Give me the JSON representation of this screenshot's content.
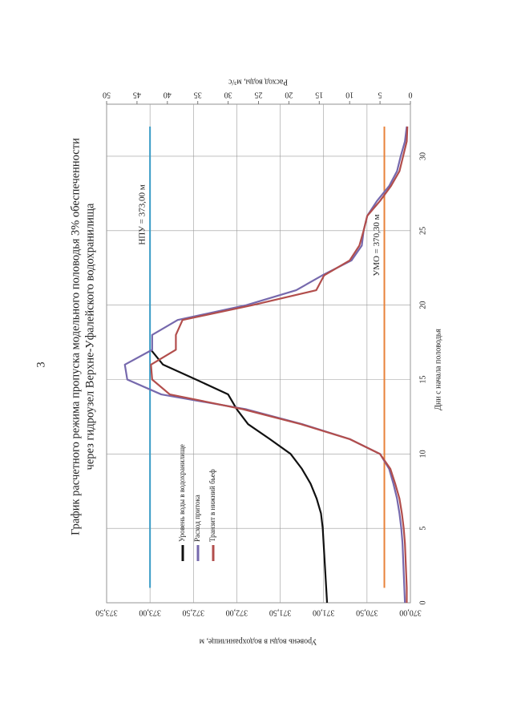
{
  "page_number": "3",
  "chart_data": {
    "type": "line",
    "title": [
      "График расчетного режима пропуска модельного половодья 3% обеспеченности",
      "через гидроузел Верхне-Уфалейского водохранилища"
    ],
    "x_label": "Дни с начала половодья",
    "y_label": "Уровень воды в водохранилище, м",
    "y2_label": "Расход воды, м³/с",
    "xlim": [
      0,
      33.5
    ],
    "xticks": [
      0,
      5,
      10,
      15,
      20,
      25,
      30
    ],
    "ylim": [
      370,
      373.5
    ],
    "yticks": [
      {
        "value": 370,
        "label": "370,00"
      },
      {
        "value": 370.5,
        "label": "370,50"
      },
      {
        "value": 371,
        "label": "371,00"
      },
      {
        "value": 371.5,
        "label": "371,50"
      },
      {
        "value": 372,
        "label": "372,00"
      },
      {
        "value": 372.5,
        "label": "372,50"
      },
      {
        "value": 373,
        "label": "373,00"
      },
      {
        "value": 373.5,
        "label": "373,50"
      }
    ],
    "y2lim": [
      0,
      50
    ],
    "y2ticks": [
      0,
      5,
      10,
      15,
      20,
      25,
      30,
      35,
      40,
      45,
      50
    ],
    "grid": true,
    "series": [
      {
        "name": "Уровень воды в водохранилище",
        "color": "#111111",
        "axis": "y",
        "x": [
          0,
          1,
          2,
          3,
          4,
          5,
          6,
          7,
          8,
          9,
          10,
          11,
          12,
          13,
          14,
          15,
          16,
          17
        ],
        "values": [
          370.96,
          370.97,
          370.98,
          370.99,
          371.0,
          371.01,
          371.03,
          371.08,
          371.15,
          371.25,
          371.38,
          371.62,
          371.87,
          372.0,
          372.1,
          372.47,
          372.85,
          372.99
        ]
      },
      {
        "name": "Расход притока",
        "color": "#7669ad",
        "axis": "y2",
        "x": [
          0,
          1,
          2,
          3,
          4,
          5,
          6,
          7,
          8,
          9,
          10,
          11,
          12,
          13,
          14,
          15,
          16,
          17,
          18,
          19,
          20,
          21,
          22,
          23,
          24,
          25,
          26,
          27,
          28,
          29,
          30,
          31,
          32
        ],
        "values": [
          0.9,
          1.0,
          1.1,
          1.2,
          1.3,
          1.5,
          1.8,
          2.2,
          2.8,
          3.5,
          5,
          10,
          17.8,
          27,
          41,
          46.6,
          47,
          42.5,
          42.5,
          38.3,
          27,
          18.8,
          14.5,
          9.7,
          8,
          7.7,
          7.1,
          5.5,
          3.5,
          2.2,
          1.6,
          0.9,
          0.6
        ]
      },
      {
        "name": "Транзит в нижний бьеф",
        "color": "#b24e4c",
        "axis": "y2",
        "x": [
          0,
          1,
          2,
          3,
          4,
          5,
          6,
          7,
          8,
          9,
          10,
          11,
          12,
          13,
          14,
          15,
          16,
          17,
          18,
          19,
          20,
          21,
          22,
          23,
          24,
          25,
          26,
          27,
          28,
          29,
          30,
          31,
          32
        ],
        "values": [
          0.6,
          0.6,
          0.7,
          0.8,
          0.9,
          1.1,
          1.4,
          1.8,
          2.5,
          3.3,
          5,
          10,
          18,
          27.5,
          39.6,
          42.5,
          42.7,
          38.6,
          38.6,
          37.5,
          26,
          15.5,
          14.2,
          10,
          8.4,
          7.7,
          7.1,
          5,
          3.2,
          1.8,
          1.2,
          0.6,
          0.5
        ]
      }
    ],
    "reference_lines": [
      {
        "label": "НПУ = 373,00 м",
        "value": 373,
        "color": "#3a9cc6",
        "xlim": [
          1,
          32
        ]
      },
      {
        "label": "УМО = 370,30 м",
        "value": 370.3,
        "color": "#e8823a",
        "xlim": [
          1,
          32
        ]
      }
    ]
  }
}
